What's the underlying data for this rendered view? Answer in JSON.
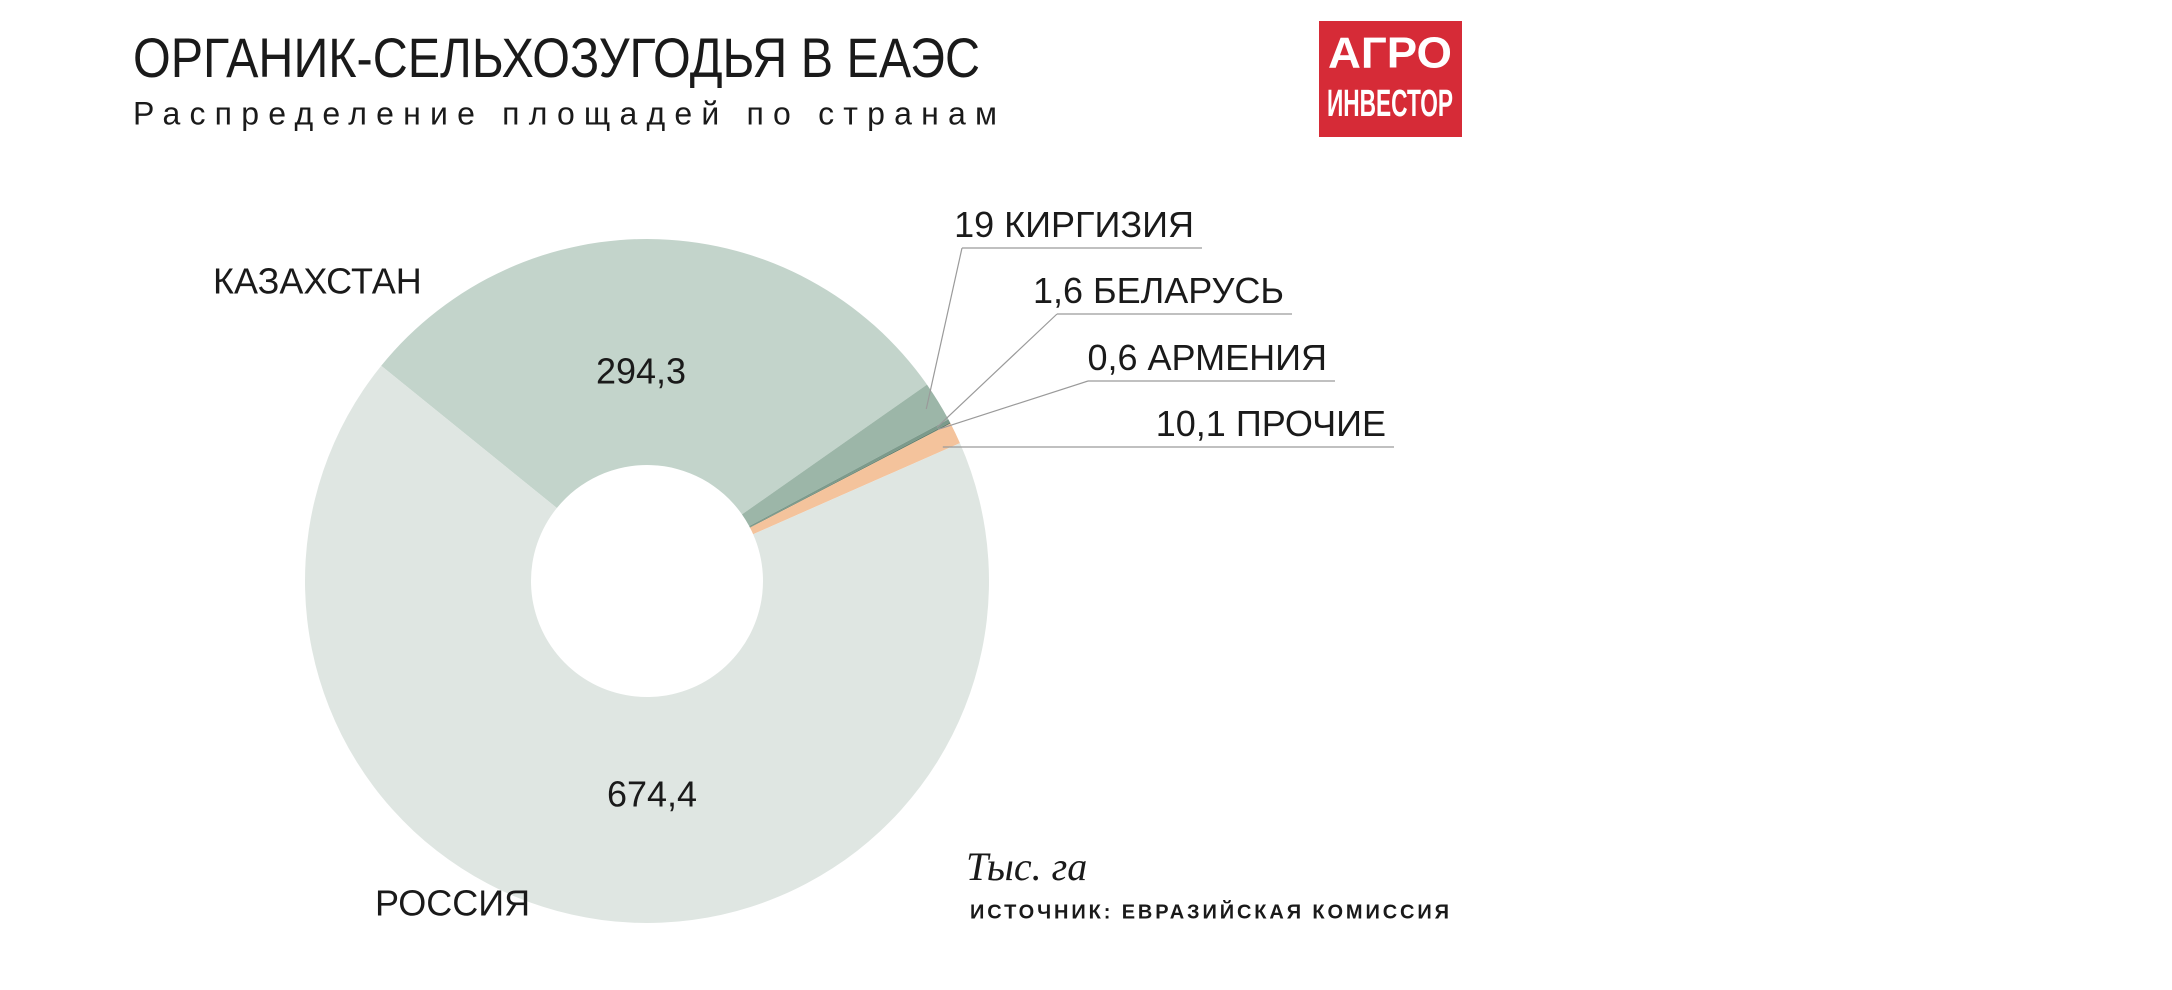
{
  "chart_data": {
    "type": "donut",
    "title": "ОРГАНИК-СЕЛЬХОЗУГОДЬЯ В ЕАЭС",
    "subtitle": "Распределение площадей по странам",
    "unit": "Тыс. га",
    "source": "ИСТОЧНИК: ЕВРАЗИЙСКАЯ КОМИССИЯ",
    "logo": [
      "АГРО",
      "ИНВЕСТОР"
    ],
    "categories": [
      "КАЗАХСТАН",
      "КИРГИЗИЯ",
      "БЕЛАРУСЬ",
      "АРМЕНИЯ",
      "ПРОЧИЕ",
      "РОССИЯ"
    ],
    "values": [
      294.3,
      19,
      1.6,
      0.6,
      10.1,
      674.4
    ],
    "value_labels": [
      "294,3",
      "19",
      "1,6",
      "0,6",
      "10,1",
      "674,4"
    ],
    "colors": [
      "#c3d4cb",
      "#9cb6a8",
      "#7c9a8b",
      "#62806f",
      "#f4c39c",
      "#dfe6e2"
    ]
  }
}
